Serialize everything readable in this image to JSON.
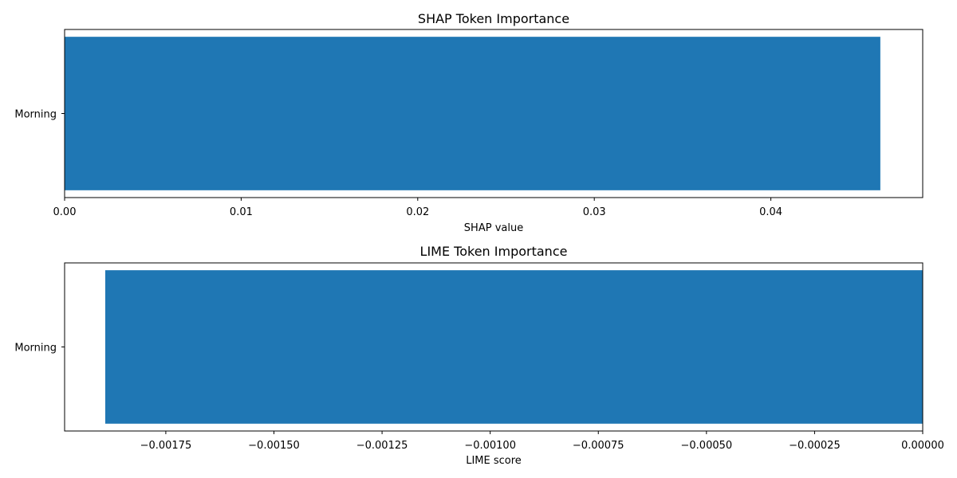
{
  "chart_data": [
    {
      "type": "bar",
      "orientation": "horizontal",
      "title": "SHAP Token Importance",
      "xlabel": "SHAP value",
      "categories": [
        "Morning"
      ],
      "values": [
        0.0462
      ],
      "xlim": [
        0,
        0.0486
      ],
      "xticks": [
        0,
        0.01,
        0.02,
        0.03,
        0.04
      ],
      "xtick_labels": [
        "0.00",
        "0.01",
        "0.02",
        "0.03",
        "0.04"
      ],
      "bar_color": "#1f77b4",
      "grid": false
    },
    {
      "type": "bar",
      "orientation": "horizontal",
      "title": "LIME Token Importance",
      "xlabel": "LIME score",
      "categories": [
        "Morning"
      ],
      "values": [
        -0.00189
      ],
      "xlim": [
        -0.001984,
        0
      ],
      "xticks": [
        -0.00175,
        -0.0015,
        -0.00125,
        -0.001,
        -0.00075,
        -0.0005,
        -0.00025,
        0
      ],
      "xtick_labels": [
        "−0.00175",
        "−0.00150",
        "−0.00125",
        "−0.00100",
        "−0.00075",
        "−0.00050",
        "−0.00025",
        "0.00000"
      ],
      "bar_color": "#1f77b4",
      "grid": false
    }
  ]
}
